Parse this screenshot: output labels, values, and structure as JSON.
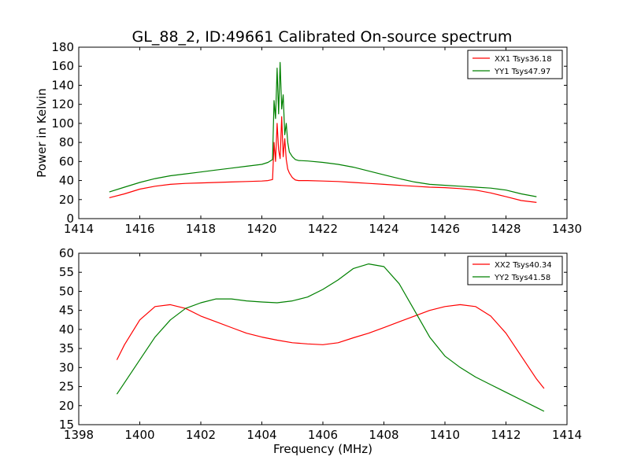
{
  "figure": {
    "title": "GL_88_2, ID:49661 Calibrated On-source spectrum"
  },
  "chart_data": [
    {
      "type": "line",
      "title": "GL_88_2, ID:49661 Calibrated On-source spectrum",
      "xlabel": "",
      "ylabel": "Power in Kelvin",
      "xlim": [
        1414,
        1430
      ],
      "ylim": [
        0,
        180
      ],
      "xticks": [
        "1414",
        "1416",
        "1418",
        "1420",
        "1422",
        "1424",
        "1426",
        "1428",
        "1430"
      ],
      "yticks": [
        "0",
        "20",
        "40",
        "60",
        "80",
        "100",
        "120",
        "140",
        "160",
        "180"
      ],
      "legend_position": "top-right",
      "grid": false,
      "series": [
        {
          "name": "XX1 Tsys36.18",
          "color": "#ff0000",
          "x": [
            1415.0,
            1415.5,
            1416.0,
            1416.5,
            1417.0,
            1417.5,
            1418.0,
            1418.5,
            1419.0,
            1419.5,
            1420.0,
            1420.2,
            1420.35,
            1420.4,
            1420.45,
            1420.5,
            1420.55,
            1420.6,
            1420.65,
            1420.7,
            1420.75,
            1420.8,
            1420.85,
            1420.9,
            1421.0,
            1421.1,
            1421.2,
            1421.5,
            1422.0,
            1422.5,
            1423.0,
            1423.5,
            1424.0,
            1424.5,
            1425.0,
            1425.5,
            1426.0,
            1426.5,
            1427.0,
            1427.5,
            1428.0,
            1428.5,
            1429.0
          ],
          "y": [
            22,
            26,
            31,
            34,
            36,
            37,
            37.5,
            38,
            38.5,
            39,
            39.5,
            40,
            41,
            80,
            60,
            100,
            72,
            63,
            107,
            65,
            84,
            62,
            52,
            48,
            43,
            40.5,
            40,
            40,
            39.5,
            39,
            38,
            37,
            36,
            35,
            34,
            33,
            32.5,
            31.5,
            30,
            27,
            23,
            19,
            17
          ]
        },
        {
          "name": "YY1 Tsys47.97",
          "color": "#008000",
          "x": [
            1415.0,
            1415.5,
            1416.0,
            1416.5,
            1417.0,
            1417.5,
            1418.0,
            1418.5,
            1419.0,
            1419.5,
            1420.0,
            1420.2,
            1420.35,
            1420.4,
            1420.45,
            1420.5,
            1420.55,
            1420.6,
            1420.65,
            1420.7,
            1420.75,
            1420.8,
            1420.85,
            1420.9,
            1421.0,
            1421.1,
            1421.2,
            1421.5,
            1422.0,
            1422.5,
            1423.0,
            1423.5,
            1424.0,
            1424.5,
            1425.0,
            1425.5,
            1426.0,
            1426.5,
            1427.0,
            1427.5,
            1428.0,
            1428.5,
            1429.0
          ],
          "y": [
            28,
            33,
            38,
            42,
            45,
            47,
            49,
            51,
            53,
            55,
            57,
            59,
            62,
            124,
            105,
            158,
            110,
            164,
            115,
            130,
            88,
            100,
            80,
            70,
            65,
            62,
            61,
            60.5,
            59,
            57,
            54,
            50,
            46,
            42,
            38.5,
            36,
            35,
            34,
            33,
            32,
            30,
            26,
            23
          ]
        }
      ]
    },
    {
      "type": "line",
      "title": "",
      "xlabel": "Frequency (MHz)",
      "ylabel": "",
      "xlim": [
        1398,
        1414
      ],
      "ylim": [
        15,
        60
      ],
      "xticks": [
        "1398",
        "1400",
        "1402",
        "1404",
        "1406",
        "1408",
        "1410",
        "1412",
        "1414"
      ],
      "yticks": [
        "15",
        "20",
        "25",
        "30",
        "35",
        "40",
        "45",
        "50",
        "55",
        "60"
      ],
      "legend_position": "top-right",
      "grid": false,
      "series": [
        {
          "name": "XX2 Tsys40.34",
          "color": "#ff0000",
          "x": [
            1399.25,
            1399.5,
            1400.0,
            1400.5,
            1401.0,
            1401.5,
            1402.0,
            1402.5,
            1403.0,
            1403.5,
            1404.0,
            1404.5,
            1405.0,
            1405.5,
            1406.0,
            1406.5,
            1407.0,
            1407.5,
            1408.0,
            1408.5,
            1409.0,
            1409.5,
            1410.0,
            1410.5,
            1411.0,
            1411.5,
            1412.0,
            1412.5,
            1413.0,
            1413.25
          ],
          "y": [
            32,
            36,
            42.5,
            46,
            46.5,
            45.5,
            43.5,
            42,
            40.5,
            39,
            38,
            37.2,
            36.5,
            36.2,
            36,
            36.5,
            37.8,
            39,
            40.5,
            42,
            43.5,
            45,
            46,
            46.5,
            46,
            43.5,
            39,
            33,
            27,
            24.5
          ]
        },
        {
          "name": "YY2 Tsys41.58",
          "color": "#008000",
          "x": [
            1399.25,
            1399.5,
            1400.0,
            1400.5,
            1401.0,
            1401.5,
            1402.0,
            1402.5,
            1403.0,
            1403.5,
            1404.0,
            1404.5,
            1405.0,
            1405.5,
            1406.0,
            1406.5,
            1407.0,
            1407.5,
            1408.0,
            1408.5,
            1409.0,
            1409.5,
            1410.0,
            1410.5,
            1411.0,
            1411.5,
            1412.0,
            1412.5,
            1413.0,
            1413.25
          ],
          "y": [
            23,
            26,
            32,
            38,
            42.5,
            45.5,
            47,
            48,
            48,
            47.5,
            47.2,
            47,
            47.5,
            48.5,
            50.5,
            53,
            56,
            57.2,
            56.5,
            52,
            45,
            38,
            33,
            30,
            27.5,
            25.5,
            23.5,
            21.5,
            19.5,
            18.5
          ]
        }
      ]
    }
  ]
}
